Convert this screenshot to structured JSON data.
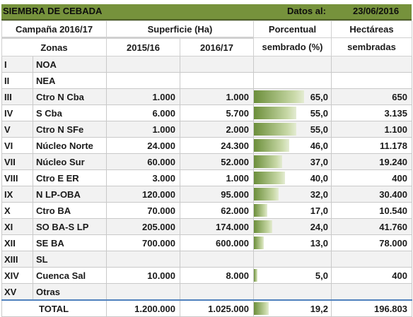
{
  "title": "SIEMBRA DE CEBADA",
  "date_label": "Datos al:",
  "date_value": "23/06/2016",
  "headers": {
    "campaign": "Campaña 2016/17",
    "surface": "Superficie (Ha)",
    "pct1": "Porcentual",
    "pct2": "sembrado (%)",
    "ha1": "Hectáreas",
    "ha2": "sembradas",
    "zones": "Zonas",
    "y1": "2015/16",
    "y2": "2016/17"
  },
  "rows": [
    {
      "roman": "I",
      "zone": "NOA",
      "s1516": "",
      "s1617": "",
      "pct": "",
      "pct_value": 0,
      "ha": ""
    },
    {
      "roman": "II",
      "zone": "NEA",
      "s1516": "",
      "s1617": "",
      "pct": "",
      "pct_value": 0,
      "ha": ""
    },
    {
      "roman": "III",
      "zone": "Ctro N Cba",
      "s1516": "1.000",
      "s1617": "1.000",
      "pct": "65,0",
      "pct_value": 65,
      "ha": "650"
    },
    {
      "roman": "IV",
      "zone": "S Cba",
      "s1516": "6.000",
      "s1617": "5.700",
      "pct": "55,0",
      "pct_value": 55,
      "ha": "3.135"
    },
    {
      "roman": "V",
      "zone": "Ctro N SFe",
      "s1516": "1.000",
      "s1617": "2.000",
      "pct": "55,0",
      "pct_value": 55,
      "ha": "1.100"
    },
    {
      "roman": "VI",
      "zone": "Núcleo Norte",
      "s1516": "24.000",
      "s1617": "24.300",
      "pct": "46,0",
      "pct_value": 46,
      "ha": "11.178"
    },
    {
      "roman": "VII",
      "zone": "Núcleo Sur",
      "s1516": "60.000",
      "s1617": "52.000",
      "pct": "37,0",
      "pct_value": 37,
      "ha": "19.240"
    },
    {
      "roman": "VIII",
      "zone": "Ctro E ER",
      "s1516": "3.000",
      "s1617": "1.000",
      "pct": "40,0",
      "pct_value": 40,
      "ha": "400"
    },
    {
      "roman": "IX",
      "zone": "N LP-OBA",
      "s1516": "120.000",
      "s1617": "95.000",
      "pct": "32,0",
      "pct_value": 32,
      "ha": "30.400"
    },
    {
      "roman": "X",
      "zone": "Ctro BA",
      "s1516": "70.000",
      "s1617": "62.000",
      "pct": "17,0",
      "pct_value": 17,
      "ha": "10.540"
    },
    {
      "roman": "XI",
      "zone": "SO BA-S LP",
      "s1516": "205.000",
      "s1617": "174.000",
      "pct": "24,0",
      "pct_value": 24,
      "ha": "41.760"
    },
    {
      "roman": "XII",
      "zone": "SE BA",
      "s1516": "700.000",
      "s1617": "600.000",
      "pct": "13,0",
      "pct_value": 13,
      "ha": "78.000"
    },
    {
      "roman": "XIII",
      "zone": "SL",
      "s1516": "",
      "s1617": "",
      "pct": "",
      "pct_value": 0,
      "ha": ""
    },
    {
      "roman": "XIV",
      "zone": "Cuenca Sal",
      "s1516": "10.000",
      "s1617": "8.000",
      "pct": "5,0",
      "pct_value": 5,
      "ha": "400"
    },
    {
      "roman": "XV",
      "zone": "Otras",
      "s1516": "",
      "s1617": "",
      "pct": "",
      "pct_value": 0,
      "ha": ""
    }
  ],
  "total": {
    "label": "TOTAL",
    "s1516": "1.200.000",
    "s1617": "1.025.000",
    "pct": "19,2",
    "pct_value": 19.2,
    "ha": "196.803"
  },
  "colors": {
    "title_bg": "#76923c",
    "bar": "#6b8e3a",
    "header_line": "#4f81bd"
  }
}
